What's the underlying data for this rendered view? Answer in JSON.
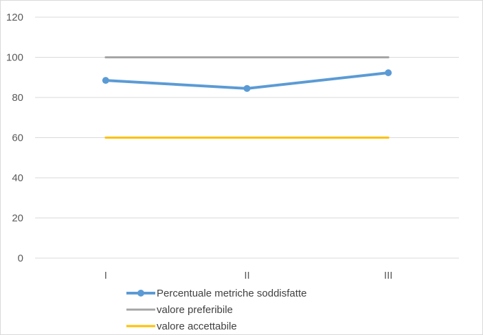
{
  "chart_data": {
    "type": "line",
    "categories": [
      "I",
      "II",
      "III"
    ],
    "ylim": [
      0,
      120
    ],
    "yticks": [
      0,
      20,
      40,
      60,
      80,
      100,
      120
    ],
    "grid": true,
    "legend_position": "bottom",
    "title": "",
    "xlabel": "",
    "ylabel": "",
    "series": [
      {
        "name": "Percentuale metriche soddisfatte",
        "values": [
          88.5,
          84.5,
          92.3
        ],
        "color": "#5b9bd5",
        "markers": true
      },
      {
        "name": "valore preferibile",
        "values": [
          100,
          100,
          100
        ],
        "color": "#a5a5a5",
        "markers": false
      },
      {
        "name": "valore accettabile",
        "values": [
          60,
          60,
          60
        ],
        "color": "#ffc000",
        "markers": false
      }
    ]
  }
}
